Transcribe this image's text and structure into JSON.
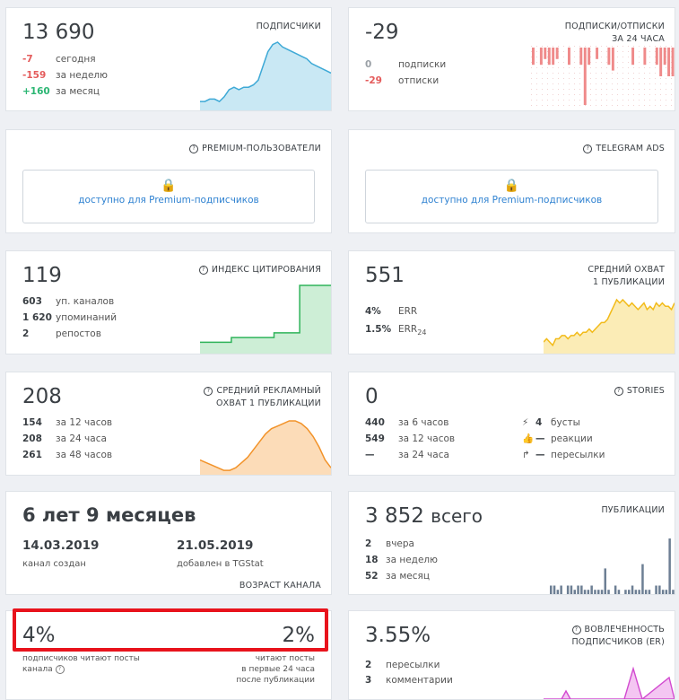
{
  "subscribers": {
    "value": "13 690",
    "caption": "ПОДПИСЧИКИ",
    "rows": [
      {
        "n": "-7",
        "l": "сегодня",
        "color": "red"
      },
      {
        "n": "-159",
        "l": "за неделю",
        "color": "red"
      },
      {
        "n": "+160",
        "l": "за месяц",
        "color": "green"
      }
    ],
    "chart_series": [
      3,
      3,
      4,
      4,
      3,
      5,
      8,
      9,
      8,
      9,
      9,
      10,
      12,
      18,
      24,
      27,
      28,
      26,
      25,
      24,
      23,
      22,
      21,
      19,
      18,
      17,
      16,
      15
    ]
  },
  "subs_unsubs": {
    "value": "-29",
    "caption_l1": "ПОДПИСКИ/ОТПИСКИ",
    "caption_l2": "ЗА 24 ЧАСА",
    "rows": [
      {
        "n": "0",
        "l": "подписки",
        "color": "gray"
      },
      {
        "n": "-29",
        "l": "отписки",
        "color": "red"
      }
    ],
    "bars": [
      3,
      0,
      3,
      2,
      3,
      3,
      2,
      0,
      0,
      3,
      0,
      0,
      3,
      10,
      3,
      0,
      2,
      0,
      0,
      3,
      4,
      0,
      0,
      0,
      0,
      3,
      0,
      0,
      3,
      0,
      0,
      3,
      5,
      3,
      5,
      5
    ]
  },
  "premium": {
    "caption": "PREMIUM-ПОЛЬЗОВАТЕЛИ",
    "lock_icon": "🔒",
    "link": "доступно для Premium-подписчиков"
  },
  "tgads": {
    "caption": "TELEGRAM ADS",
    "lock_icon": "🔒",
    "link": "доступно для Premium-подписчиков"
  },
  "citation": {
    "value": "119",
    "caption": "ИНДЕКС ЦИТИРОВАНИЯ",
    "rows": [
      {
        "n": "603",
        "l": "уп. каналов"
      },
      {
        "n": "1 620",
        "l": "упоминаний"
      },
      {
        "n": "2",
        "l": "репостов"
      }
    ],
    "chart_series": [
      2,
      2,
      2,
      2,
      2,
      2,
      2,
      2,
      2,
      2,
      2,
      3,
      3,
      3,
      3,
      3,
      3,
      3,
      3,
      3,
      3,
      3,
      3,
      3,
      3,
      3,
      4,
      4,
      4,
      4,
      4,
      4,
      4,
      4,
      4,
      14,
      14,
      14,
      14,
      14,
      14,
      14,
      14,
      14,
      14,
      14,
      14
    ]
  },
  "reach": {
    "value": "551",
    "caption_l1": "СРЕДНИЙ ОХВАТ",
    "caption_l2": "1 ПУБЛИКАЦИИ",
    "rows": [
      {
        "n": "4%",
        "l": "ERR"
      },
      {
        "n": "1.5%",
        "l": "ERR",
        "sub": "24"
      }
    ],
    "chart_series": [
      3,
      4,
      3,
      2,
      4,
      4,
      5,
      5,
      4,
      5,
      5,
      6,
      5,
      6,
      6,
      7,
      6,
      7,
      8,
      9,
      9,
      10,
      12,
      14,
      16,
      15,
      16,
      15,
      14,
      15,
      14,
      13,
      14,
      15,
      13,
      14,
      13,
      15,
      14,
      15,
      14,
      14,
      13,
      15
    ]
  },
  "ad_reach": {
    "value": "208",
    "caption_l1": "СРЕДНИЙ РЕКЛАМНЫЙ",
    "caption_l2": "ОХВАТ 1 ПУБЛИКАЦИИ",
    "rows": [
      {
        "n": "154",
        "l": "за 12 часов"
      },
      {
        "n": "208",
        "l": "за 24 часа"
      },
      {
        "n": "261",
        "l": "за 48 часов"
      }
    ],
    "chart_series": [
      5,
      4,
      3,
      2,
      1,
      1,
      2,
      4,
      6,
      9,
      12,
      15,
      17,
      18,
      19,
      20,
      20,
      19,
      17,
      14,
      10,
      5,
      2
    ]
  },
  "stories": {
    "value": "0",
    "caption": "STORIES",
    "rows": [
      {
        "n": "440",
        "l": "за 6 часов"
      },
      {
        "n": "549",
        "l": "за 12 часов"
      },
      {
        "n": "—",
        "l": "за 24 часа"
      }
    ],
    "rows2": [
      {
        "icon": "⚡",
        "n": "4",
        "l": "бусты"
      },
      {
        "icon": "👍",
        "n": "—",
        "l": "реакции"
      },
      {
        "icon": "↱",
        "n": "—",
        "l": "пересылки"
      }
    ]
  },
  "age": {
    "value": "6 лет 9 месяцев",
    "created_date": "14.03.2019",
    "created_label": "канал создан",
    "added_date": "21.05.2019",
    "added_label": "добавлен в TGStat",
    "caption": "ВОЗРАСТ КАНАЛА"
  },
  "posts": {
    "value": "3 852",
    "value_suffix": "всего",
    "caption": "ПУБЛИКАЦИИ",
    "rows": [
      {
        "n": "2",
        "l": "вчера"
      },
      {
        "n": "18",
        "l": "за неделю"
      },
      {
        "n": "52",
        "l": "за месяц"
      }
    ],
    "bars": [
      2,
      2,
      1,
      2,
      0,
      2,
      2,
      1,
      2,
      2,
      1,
      1,
      2,
      1,
      1,
      1,
      6,
      1,
      0,
      2,
      1,
      0,
      1,
      1,
      2,
      1,
      1,
      7,
      1,
      1,
      0,
      2,
      2,
      1,
      1,
      13,
      1
    ]
  },
  "readers": {
    "left_value": "4%",
    "right_value": "2%",
    "left_label_l1": "подписчиков читают посты",
    "left_label_l2": "канала",
    "right_label_l1": "читают посты",
    "right_label_l2": "в первые 24 часа",
    "right_label_l3": "после публикации"
  },
  "er": {
    "value": "3.55%",
    "caption_l1": "ВОВЛЕЧЕННОСТЬ",
    "caption_l2": "ПОДПИСЧИКОВ (ER)",
    "rows": [
      {
        "n": "2",
        "l": "пересылки"
      },
      {
        "n": "3",
        "l": "комментарии"
      }
    ]
  }
}
